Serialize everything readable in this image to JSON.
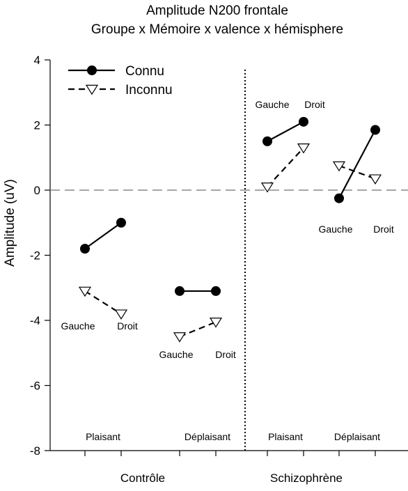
{
  "chart_data": {
    "type": "line",
    "title": "Amplitude N200 frontale",
    "subtitle": "Groupe x Mémoire x valence x hémisphere",
    "ylabel": "Amplitude (uV)",
    "xlabel": "",
    "ylim": [
      -8,
      4
    ],
    "yticks": [
      4,
      2,
      0,
      -2,
      -4,
      -6,
      -8
    ],
    "ytick_labels": [
      "4",
      "2",
      "0",
      "-2",
      "-4",
      "-6",
      "-8"
    ],
    "zero_reference_line": true,
    "legend": {
      "placement": "top-left",
      "entries": [
        {
          "label": "Connu",
          "marker": "filled-circle",
          "line": "solid"
        },
        {
          "label": "Inconnu",
          "marker": "open-triangle-down",
          "line": "dashed"
        }
      ]
    },
    "groups": [
      {
        "label": "Contrôle"
      },
      {
        "label": "Schizophrène"
      }
    ],
    "conditions": [
      {
        "group": 0,
        "valence": "Plaisant",
        "left_label": "Gauche",
        "right_label": "Droit",
        "connu": [
          -1.8,
          -1.0
        ],
        "inconnu": [
          -3.1,
          -3.8
        ]
      },
      {
        "group": 0,
        "valence": "Déplaisant",
        "left_label": "Gauche",
        "right_label": "Droit",
        "connu": [
          -3.1,
          -3.1
        ],
        "inconnu": [
          -4.5,
          -4.05
        ]
      },
      {
        "group": 1,
        "valence": "Plaisant",
        "left_label": "Gauche",
        "right_label": "Droit",
        "connu": [
          1.5,
          2.1
        ],
        "inconnu": [
          0.1,
          1.3
        ]
      },
      {
        "group": 1,
        "valence": "Déplaisant",
        "left_label": "Gauche",
        "right_label": "Droit",
        "connu": [
          -0.25,
          1.85
        ],
        "inconnu": [
          0.75,
          0.35
        ]
      }
    ]
  }
}
